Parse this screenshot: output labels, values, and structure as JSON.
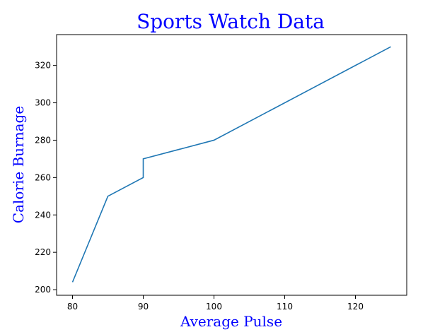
{
  "chart_data": {
    "type": "line",
    "title": "Sports Watch Data",
    "xlabel": "Average Pulse",
    "ylabel": "Calorie Burnage",
    "series": [
      {
        "name": "Calorie Burnage",
        "x": [
          80,
          85,
          90,
          90,
          100,
          125
        ],
        "y": [
          204,
          250,
          260,
          270,
          280,
          330
        ],
        "color": "#1f77b4"
      }
    ],
    "xlim": [
      77.75,
      127.25
    ],
    "ylim": [
      197.0,
      336.5
    ],
    "xticks": [
      80,
      90,
      100,
      110,
      120
    ],
    "yticks": [
      200,
      220,
      240,
      260,
      280,
      300,
      320
    ],
    "xtick_labels": [
      "80",
      "90",
      "100",
      "110",
      "120"
    ],
    "ytick_labels": [
      "200",
      "220",
      "240",
      "260",
      "280",
      "300",
      "320"
    ],
    "grid": false,
    "title_color": "#0000ff",
    "label_color": "#0000ff"
  }
}
